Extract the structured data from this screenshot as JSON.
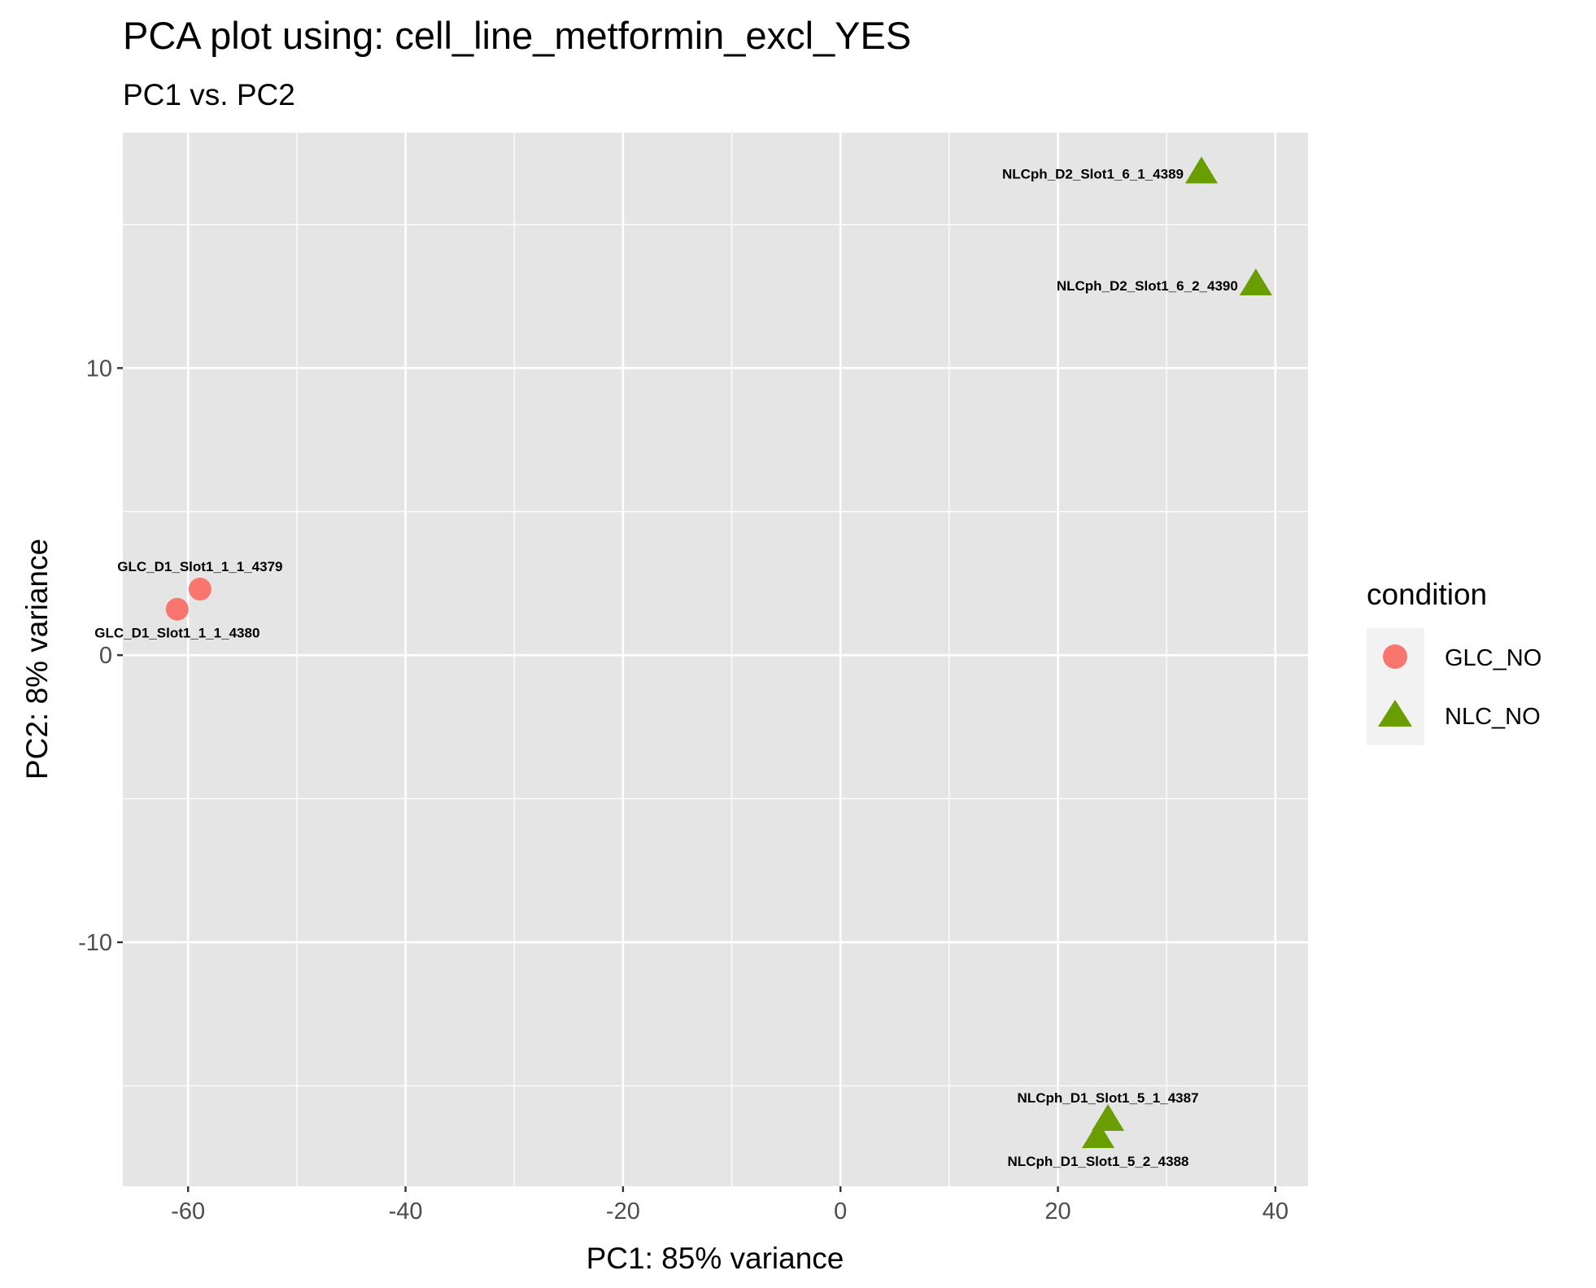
{
  "chart_data": {
    "type": "scatter",
    "title": "PCA plot using: cell_line_metformin_excl_YES",
    "subtitle": "PC1 vs. PC2",
    "xlabel": "PC1: 85% variance",
    "ylabel": "PC2: 8% variance",
    "xlim": [
      -66,
      43
    ],
    "ylim": [
      -18.5,
      18.2
    ],
    "x_ticks": [
      -60,
      -40,
      -20,
      0,
      20,
      40
    ],
    "x_tick_labels": [
      "-60",
      "-40",
      "-20",
      "0",
      "20",
      "40"
    ],
    "x_minor_ticks": [
      -50,
      -30,
      -10,
      10,
      30
    ],
    "y_ticks": [
      -10,
      0,
      10
    ],
    "y_tick_labels": [
      "-10",
      "0",
      "10"
    ],
    "y_minor_ticks": [
      -15,
      -5,
      5,
      15
    ],
    "grid": true,
    "legend": {
      "title": "condition",
      "placement": "right",
      "entries": [
        {
          "label": "GLC_NO",
          "shape": "circle",
          "color": "#F8766D"
        },
        {
          "label": "NLC_NO",
          "shape": "triangle",
          "color": "#6A9E00"
        }
      ]
    },
    "series": [
      {
        "name": "GLC_NO",
        "shape": "circle",
        "color": "#F8766D",
        "points": [
          {
            "x": -58.9,
            "y": 2.3,
            "label": "GLC_D1_Slot1_1_1_4379",
            "label_pos": "above"
          },
          {
            "x": -61.0,
            "y": 1.6,
            "label": "GLC_D1_Slot1_1_1_4380",
            "label_pos": "below"
          }
        ]
      },
      {
        "name": "NLC_NO",
        "shape": "triangle",
        "color": "#6A9E00",
        "points": [
          {
            "x": 33.2,
            "y": 16.8,
            "label": "NLCph_D2_Slot1_6_1_4389",
            "label_pos": "left"
          },
          {
            "x": 38.2,
            "y": 12.9,
            "label": "NLCph_D2_Slot1_6_2_4390",
            "label_pos": "left"
          },
          {
            "x": 24.6,
            "y": -16.2,
            "label": "NLCph_D1_Slot1_5_1_4387",
            "label_pos": "above"
          },
          {
            "x": 23.7,
            "y": -16.8,
            "label": "NLCph_D1_Slot1_5_2_4388",
            "label_pos": "below"
          }
        ]
      }
    ],
    "colors": {
      "panel_background": "#E5E5E5",
      "grid": "#FFFFFF",
      "legend_key_background": "#F2F2F2",
      "tick_text": "#4D4D4D"
    }
  }
}
